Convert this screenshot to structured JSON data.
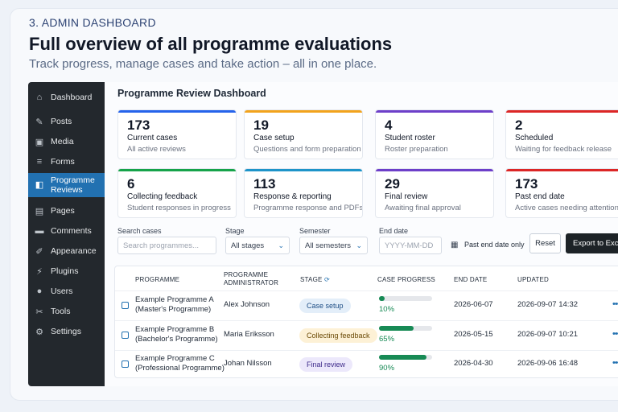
{
  "page": {
    "eyebrow": "3.  ADMIN DASHBOARD",
    "headline": "Full overview of all programme evaluations",
    "subheadline": "Track progress, manage cases and take action – all in one place."
  },
  "sidebar": {
    "items": [
      {
        "label": "Dashboard",
        "icon": "home-icon",
        "glyph": "⌂"
      },
      {
        "label": "Posts",
        "icon": "pin-icon",
        "glyph": "✎"
      },
      {
        "label": "Media",
        "icon": "media-icon",
        "glyph": "▣"
      },
      {
        "label": "Forms",
        "icon": "database-icon",
        "glyph": "≡"
      },
      {
        "label": "Programme\nReviews",
        "icon": "reviews-icon",
        "glyph": "◧",
        "active": true
      },
      {
        "label": "Pages",
        "icon": "pages-icon",
        "glyph": "▤"
      },
      {
        "label": "Comments",
        "icon": "comment-icon",
        "glyph": "▬"
      },
      {
        "label": "Appearance",
        "icon": "brush-icon",
        "glyph": "✐"
      },
      {
        "label": "Plugins",
        "icon": "plugin-icon",
        "glyph": "⚡"
      },
      {
        "label": "Users",
        "icon": "user-icon",
        "glyph": "●"
      },
      {
        "label": "Tools",
        "icon": "wrench-icon",
        "glyph": "✂"
      },
      {
        "label": "Settings",
        "icon": "gear-icon",
        "glyph": "⚙"
      }
    ]
  },
  "dashboard": {
    "title": "Programme Review Dashboard",
    "cards": [
      {
        "value": "173",
        "title": "Current cases",
        "desc": "All active reviews",
        "color": "#2563eb"
      },
      {
        "value": "19",
        "title": "Case setup",
        "desc": "Questions and form preparation",
        "color": "#f2a31c"
      },
      {
        "value": "4",
        "title": "Student roster",
        "desc": "Roster preparation",
        "color": "#6d3fc9"
      },
      {
        "value": "2",
        "title": "Scheduled",
        "desc": "Waiting for feedback release",
        "color": "#dc2626"
      },
      {
        "value": "6",
        "title": "Collecting feedback",
        "desc": "Student responses in progress",
        "color": "#16a34a"
      },
      {
        "value": "113",
        "title": "Response & reporting",
        "desc": "Programme response and PDFs",
        "color": "#1e94c9"
      },
      {
        "value": "29",
        "title": "Final review",
        "desc": "Awaiting final approval",
        "color": "#6d3fc9"
      },
      {
        "value": "173",
        "title": "Past end date",
        "desc": "Active cases needing attention",
        "color": "#dc2626"
      }
    ],
    "filters": {
      "search_label": "Search cases",
      "search_placeholder": "Search programmes...",
      "stage_label": "Stage",
      "stage_value": "All stages",
      "semester_label": "Semester",
      "semester_value": "All semesters",
      "enddate_label": "End date",
      "enddate_placeholder": "YYYY-MM-DD",
      "past_end_only": "Past end date only",
      "reset": "Reset",
      "export": "Export to Excel"
    },
    "table": {
      "headers": {
        "programme": "PROGRAMME",
        "admin": "PROGRAMME\nADMINISTRATOR",
        "stage": "STAGE",
        "progress": "CASE PROGRESS",
        "end": "END DATE",
        "updated": "UPDATED"
      },
      "rows": [
        {
          "programme": "Example Programme A\n(Master's Programme)",
          "admin": "Alex Johnson",
          "stage": "Case setup",
          "progress": 10,
          "progress_label": "10%",
          "end": "2026-06-07",
          "updated": "2026-09-07 14:32",
          "stage_bg": "#e3eef9",
          "stage_fg": "#1f4f86"
        },
        {
          "programme": "Example Programme B\n(Bachelor's Programme)",
          "admin": "Maria Eriksson",
          "stage": "Collecting feedback",
          "progress": 65,
          "progress_label": "65%",
          "end": "2026-05-15",
          "updated": "2026-09-07 10:21",
          "stage_bg": "#fdf1d6",
          "stage_fg": "#6b4a06"
        },
        {
          "programme": "Example Programme C\n(Professional Programme)",
          "admin": "Johan Nilsson",
          "stage": "Final review",
          "progress": 90,
          "progress_label": "90%",
          "end": "2026-04-30",
          "updated": "2026-09-06 16:48",
          "stage_bg": "#ece8fb",
          "stage_fg": "#3d2a8a"
        }
      ]
    }
  }
}
